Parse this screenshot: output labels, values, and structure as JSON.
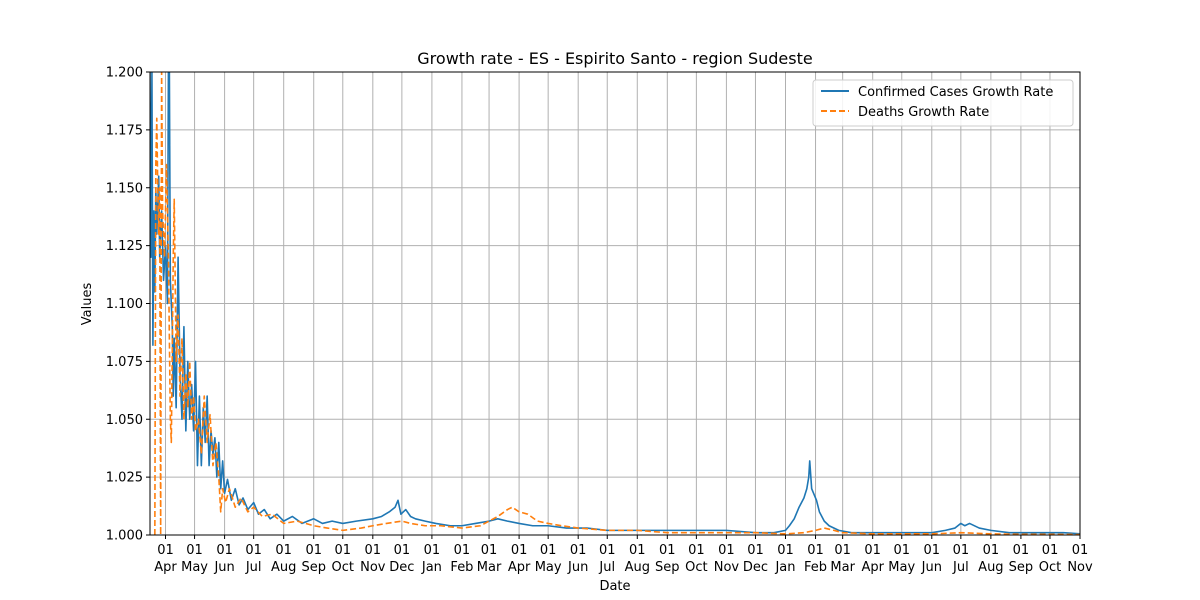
{
  "chart_data": {
    "type": "line",
    "title": "Growth rate - ES - Espirito Santo - region Sudeste",
    "xlabel": "Date",
    "ylabel": "Values",
    "xlim": [
      "2020-03-16",
      "2022-11-01"
    ],
    "ylim": [
      1.0,
      1.2
    ],
    "y_ticks": [
      "1.000",
      "1.025",
      "1.050",
      "1.075",
      "1.100",
      "1.125",
      "1.150",
      "1.175",
      "1.200"
    ],
    "x_ticks": [
      {
        "day": "01",
        "month": "Apr",
        "date": "2020-04-01"
      },
      {
        "day": "01",
        "month": "May",
        "date": "2020-05-01"
      },
      {
        "day": "01",
        "month": "Jun",
        "date": "2020-06-01"
      },
      {
        "day": "01",
        "month": "Jul",
        "date": "2020-07-01"
      },
      {
        "day": "01",
        "month": "Aug",
        "date": "2020-08-01"
      },
      {
        "day": "01",
        "month": "Sep",
        "date": "2020-09-01"
      },
      {
        "day": "01",
        "month": "Oct",
        "date": "2020-10-01"
      },
      {
        "day": "01",
        "month": "Nov",
        "date": "2020-11-01"
      },
      {
        "day": "01",
        "month": "Dec",
        "date": "2020-12-01"
      },
      {
        "day": "01",
        "month": "Jan",
        "date": "2021-01-01"
      },
      {
        "day": "01",
        "month": "Feb",
        "date": "2021-02-01"
      },
      {
        "day": "01",
        "month": "Mar",
        "date": "2021-03-01"
      },
      {
        "day": "01",
        "month": "Apr",
        "date": "2021-04-01"
      },
      {
        "day": "01",
        "month": "May",
        "date": "2021-05-01"
      },
      {
        "day": "01",
        "month": "Jun",
        "date": "2021-06-01"
      },
      {
        "day": "01",
        "month": "Jul",
        "date": "2021-07-01"
      },
      {
        "day": "01",
        "month": "Aug",
        "date": "2021-08-01"
      },
      {
        "day": "01",
        "month": "Sep",
        "date": "2021-09-01"
      },
      {
        "day": "01",
        "month": "Oct",
        "date": "2021-10-01"
      },
      {
        "day": "01",
        "month": "Nov",
        "date": "2021-11-01"
      },
      {
        "day": "01",
        "month": "Dec",
        "date": "2021-12-01"
      },
      {
        "day": "01",
        "month": "Jan",
        "date": "2022-01-01"
      },
      {
        "day": "01",
        "month": "Feb",
        "date": "2022-02-01"
      },
      {
        "day": "01",
        "month": "Mar",
        "date": "2022-03-01"
      },
      {
        "day": "01",
        "month": "Apr",
        "date": "2022-04-01"
      },
      {
        "day": "01",
        "month": "May",
        "date": "2022-05-01"
      },
      {
        "day": "01",
        "month": "Jun",
        "date": "2022-06-01"
      },
      {
        "day": "01",
        "month": "Jul",
        "date": "2022-07-01"
      },
      {
        "day": "01",
        "month": "Aug",
        "date": "2022-08-01"
      },
      {
        "day": "01",
        "month": "Sep",
        "date": "2022-09-01"
      },
      {
        "day": "01",
        "month": "Oct",
        "date": "2022-10-01"
      },
      {
        "day": "01",
        "month": "Nov",
        "date": "2022-11-01"
      }
    ],
    "grid": true,
    "legend_position": "top-right",
    "series": [
      {
        "name": "Confirmed Cases Growth Rate",
        "color": "#1f77b4",
        "line_style": "solid",
        "points": [
          [
            "2020-03-16",
            1.2
          ],
          [
            "2020-03-17",
            1.12
          ],
          [
            "2020-03-18",
            1.2
          ],
          [
            "2020-03-19",
            1.082
          ],
          [
            "2020-03-20",
            1.14
          ],
          [
            "2020-03-21",
            1.105
          ],
          [
            "2020-03-22",
            1.15
          ],
          [
            "2020-03-23",
            1.13
          ],
          [
            "2020-03-25",
            1.155
          ],
          [
            "2020-03-26",
            1.12
          ],
          [
            "2020-03-28",
            1.14
          ],
          [
            "2020-03-30",
            1.11
          ],
          [
            "2020-04-01",
            1.125
          ],
          [
            "2020-04-03",
            1.1
          ],
          [
            "2020-04-04",
            1.2
          ],
          [
            "2020-04-05",
            1.2
          ],
          [
            "2020-04-06",
            1.11
          ],
          [
            "2020-04-08",
            1.09
          ],
          [
            "2020-04-09",
            1.06
          ],
          [
            "2020-04-10",
            1.085
          ],
          [
            "2020-04-12",
            1.055
          ],
          [
            "2020-04-14",
            1.12
          ],
          [
            "2020-04-16",
            1.07
          ],
          [
            "2020-04-18",
            1.05
          ],
          [
            "2020-04-20",
            1.09
          ],
          [
            "2020-04-22",
            1.045
          ],
          [
            "2020-04-24",
            1.075
          ],
          [
            "2020-04-26",
            1.05
          ],
          [
            "2020-04-28",
            1.065
          ],
          [
            "2020-04-30",
            1.045
          ],
          [
            "2020-05-02",
            1.075
          ],
          [
            "2020-05-04",
            1.03
          ],
          [
            "2020-05-06",
            1.06
          ],
          [
            "2020-05-08",
            1.03
          ],
          [
            "2020-05-10",
            1.055
          ],
          [
            "2020-05-12",
            1.04
          ],
          [
            "2020-05-14",
            1.06
          ],
          [
            "2020-05-16",
            1.03
          ],
          [
            "2020-05-18",
            1.045
          ],
          [
            "2020-05-20",
            1.035
          ],
          [
            "2020-05-22",
            1.042
          ],
          [
            "2020-05-24",
            1.025
          ],
          [
            "2020-05-26",
            1.04
          ],
          [
            "2020-05-28",
            1.02
          ],
          [
            "2020-05-30",
            1.032
          ],
          [
            "2020-06-01",
            1.018
          ],
          [
            "2020-06-04",
            1.024
          ],
          [
            "2020-06-08",
            1.015
          ],
          [
            "2020-06-12",
            1.02
          ],
          [
            "2020-06-16",
            1.013
          ],
          [
            "2020-06-20",
            1.016
          ],
          [
            "2020-06-25",
            1.011
          ],
          [
            "2020-07-01",
            1.014
          ],
          [
            "2020-07-06",
            1.009
          ],
          [
            "2020-07-12",
            1.011
          ],
          [
            "2020-07-18",
            1.007
          ],
          [
            "2020-07-25",
            1.009
          ],
          [
            "2020-08-01",
            1.006
          ],
          [
            "2020-08-10",
            1.008
          ],
          [
            "2020-08-20",
            1.005
          ],
          [
            "2020-09-01",
            1.007
          ],
          [
            "2020-09-10",
            1.005
          ],
          [
            "2020-09-20",
            1.006
          ],
          [
            "2020-10-01",
            1.005
          ],
          [
            "2020-10-15",
            1.006
          ],
          [
            "2020-11-01",
            1.007
          ],
          [
            "2020-11-10",
            1.008
          ],
          [
            "2020-11-18",
            1.01
          ],
          [
            "2020-11-24",
            1.012
          ],
          [
            "2020-11-27",
            1.015
          ],
          [
            "2020-11-30",
            1.009
          ],
          [
            "2020-12-05",
            1.011
          ],
          [
            "2020-12-10",
            1.008
          ],
          [
            "2020-12-15",
            1.007
          ],
          [
            "2020-12-25",
            1.006
          ],
          [
            "2021-01-05",
            1.005
          ],
          [
            "2021-01-20",
            1.004
          ],
          [
            "2021-02-01",
            1.004
          ],
          [
            "2021-02-15",
            1.005
          ],
          [
            "2021-03-01",
            1.006
          ],
          [
            "2021-03-10",
            1.007
          ],
          [
            "2021-03-20",
            1.006
          ],
          [
            "2021-04-01",
            1.005
          ],
          [
            "2021-04-15",
            1.004
          ],
          [
            "2021-05-01",
            1.004
          ],
          [
            "2021-05-20",
            1.003
          ],
          [
            "2021-06-10",
            1.003
          ],
          [
            "2021-07-01",
            1.002
          ],
          [
            "2021-08-01",
            1.002
          ],
          [
            "2021-09-01",
            1.002
          ],
          [
            "2021-10-01",
            1.002
          ],
          [
            "2021-11-01",
            1.002
          ],
          [
            "2021-12-01",
            1.001
          ],
          [
            "2021-12-20",
            1.001
          ],
          [
            "2022-01-01",
            1.002
          ],
          [
            "2022-01-05",
            1.004
          ],
          [
            "2022-01-10",
            1.007
          ],
          [
            "2022-01-15",
            1.012
          ],
          [
            "2022-01-20",
            1.016
          ],
          [
            "2022-01-23",
            1.02
          ],
          [
            "2022-01-25",
            1.025
          ],
          [
            "2022-01-26",
            1.032
          ],
          [
            "2022-01-28",
            1.02
          ],
          [
            "2022-01-30",
            1.018
          ],
          [
            "2022-02-02",
            1.015
          ],
          [
            "2022-02-05",
            1.01
          ],
          [
            "2022-02-10",
            1.006
          ],
          [
            "2022-02-15",
            1.004
          ],
          [
            "2022-02-25",
            1.002
          ],
          [
            "2022-03-10",
            1.001
          ],
          [
            "2022-04-01",
            1.001
          ],
          [
            "2022-05-01",
            1.001
          ],
          [
            "2022-06-01",
            1.001
          ],
          [
            "2022-06-15",
            1.002
          ],
          [
            "2022-06-25",
            1.003
          ],
          [
            "2022-07-01",
            1.005
          ],
          [
            "2022-07-05",
            1.004
          ],
          [
            "2022-07-10",
            1.005
          ],
          [
            "2022-07-20",
            1.003
          ],
          [
            "2022-08-01",
            1.002
          ],
          [
            "2022-08-20",
            1.001
          ],
          [
            "2022-09-15",
            1.001
          ],
          [
            "2022-10-15",
            1.001
          ],
          [
            "2022-11-01",
            1.0005
          ]
        ]
      },
      {
        "name": "Deaths Growth Rate",
        "color": "#ff7f0e",
        "line_style": "dashed",
        "points": [
          [
            "2020-03-21",
            1.0
          ],
          [
            "2020-03-22",
            1.16
          ],
          [
            "2020-03-23",
            1.18
          ],
          [
            "2020-03-24",
            1.15
          ],
          [
            "2020-03-25",
            1.13
          ],
          [
            "2020-03-26",
            1.15
          ],
          [
            "2020-03-27",
            1.0
          ],
          [
            "2020-03-28",
            1.2
          ],
          [
            "2020-03-29",
            1.14
          ],
          [
            "2020-03-31",
            1.12
          ],
          [
            "2020-04-02",
            1.16
          ],
          [
            "2020-04-04",
            1.12
          ],
          [
            "2020-04-06",
            1.05
          ],
          [
            "2020-04-07",
            1.04
          ],
          [
            "2020-04-09",
            1.12
          ],
          [
            "2020-04-10",
            1.145
          ],
          [
            "2020-04-12",
            1.075
          ],
          [
            "2020-04-14",
            1.095
          ],
          [
            "2020-04-16",
            1.06
          ],
          [
            "2020-04-18",
            1.085
          ],
          [
            "2020-04-20",
            1.05
          ],
          [
            "2020-04-22",
            1.07
          ],
          [
            "2020-04-24",
            1.055
          ],
          [
            "2020-04-26",
            1.075
          ],
          [
            "2020-04-28",
            1.05
          ],
          [
            "2020-04-30",
            1.06
          ],
          [
            "2020-05-02",
            1.045
          ],
          [
            "2020-05-05",
            1.05
          ],
          [
            "2020-05-08",
            1.035
          ],
          [
            "2020-05-11",
            1.06
          ],
          [
            "2020-05-14",
            1.04
          ],
          [
            "2020-05-17",
            1.052
          ],
          [
            "2020-05-20",
            1.03
          ],
          [
            "2020-05-23",
            1.04
          ],
          [
            "2020-05-26",
            1.025
          ],
          [
            "2020-05-28",
            1.01
          ],
          [
            "2020-05-30",
            1.02
          ],
          [
            "2020-06-02",
            1.014
          ],
          [
            "2020-06-06",
            1.02
          ],
          [
            "2020-06-12",
            1.012
          ],
          [
            "2020-06-18",
            1.016
          ],
          [
            "2020-06-25",
            1.01
          ],
          [
            "2020-07-01",
            1.012
          ],
          [
            "2020-07-10",
            1.008
          ],
          [
            "2020-07-20",
            1.009
          ],
          [
            "2020-08-01",
            1.005
          ],
          [
            "2020-08-15",
            1.006
          ],
          [
            "2020-09-01",
            1.004
          ],
          [
            "2020-09-15",
            1.003
          ],
          [
            "2020-10-01",
            1.002
          ],
          [
            "2020-10-20",
            1.003
          ],
          [
            "2020-11-01",
            1.004
          ],
          [
            "2020-11-15",
            1.005
          ],
          [
            "2020-12-01",
            1.006
          ],
          [
            "2020-12-10",
            1.005
          ],
          [
            "2020-12-25",
            1.004
          ],
          [
            "2021-01-10",
            1.004
          ],
          [
            "2021-02-01",
            1.003
          ],
          [
            "2021-02-20",
            1.004
          ],
          [
            "2021-03-01",
            1.006
          ],
          [
            "2021-03-10",
            1.008
          ],
          [
            "2021-03-20",
            1.011
          ],
          [
            "2021-03-25",
            1.012
          ],
          [
            "2021-04-01",
            1.01
          ],
          [
            "2021-04-10",
            1.009
          ],
          [
            "2021-04-20",
            1.006
          ],
          [
            "2021-05-01",
            1.005
          ],
          [
            "2021-05-15",
            1.004
          ],
          [
            "2021-06-01",
            1.003
          ],
          [
            "2021-07-01",
            1.002
          ],
          [
            "2021-08-01",
            1.002
          ],
          [
            "2021-09-01",
            1.001
          ],
          [
            "2021-10-01",
            1.001
          ],
          [
            "2021-11-01",
            1.001
          ],
          [
            "2021-12-01",
            1.001
          ],
          [
            "2022-01-01",
            1.0005
          ],
          [
            "2022-01-20",
            1.001
          ],
          [
            "2022-02-01",
            1.002
          ],
          [
            "2022-02-10",
            1.003
          ],
          [
            "2022-02-20",
            1.002
          ],
          [
            "2022-03-01",
            1.001
          ],
          [
            "2022-04-01",
            1.0005
          ],
          [
            "2022-05-01",
            1.0005
          ],
          [
            "2022-06-01",
            1.0005
          ],
          [
            "2022-07-01",
            1.001
          ],
          [
            "2022-08-01",
            1.0005
          ],
          [
            "2022-09-01",
            1.0003
          ],
          [
            "2022-10-01",
            1.0003
          ],
          [
            "2022-11-01",
            1.0002
          ]
        ]
      }
    ]
  }
}
